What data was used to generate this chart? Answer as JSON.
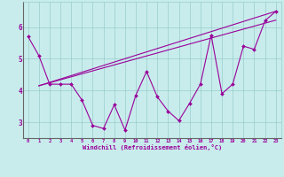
{
  "xlabel": "Windchill (Refroidissement éolien,°C)",
  "background_color": "#c8ecec",
  "line_color": "#990099",
  "grid_color": "#99cccc",
  "x_data": [
    0,
    1,
    2,
    3,
    4,
    5,
    6,
    7,
    8,
    9,
    10,
    11,
    12,
    13,
    14,
    15,
    16,
    17,
    18,
    19,
    20,
    21,
    22,
    23
  ],
  "zigzag_y": [
    5.7,
    5.1,
    4.2,
    4.2,
    4.2,
    3.7,
    2.9,
    2.8,
    3.55,
    2.75,
    3.85,
    4.6,
    3.8,
    3.35,
    3.05,
    3.6,
    4.2,
    5.75,
    3.9,
    4.2,
    5.4,
    5.3,
    6.2,
    6.5
  ],
  "trend1_x": [
    1,
    23
  ],
  "trend1_y": [
    4.15,
    6.5
  ],
  "trend2_x": [
    1,
    23
  ],
  "trend2_y": [
    4.15,
    6.22
  ],
  "xlim": [
    -0.5,
    23.5
  ],
  "ylim": [
    2.5,
    6.8
  ],
  "xticks": [
    0,
    1,
    2,
    3,
    4,
    5,
    6,
    7,
    8,
    9,
    10,
    11,
    12,
    13,
    14,
    15,
    16,
    17,
    18,
    19,
    20,
    21,
    22,
    23
  ],
  "yticks": [
    3,
    4,
    5,
    6
  ]
}
